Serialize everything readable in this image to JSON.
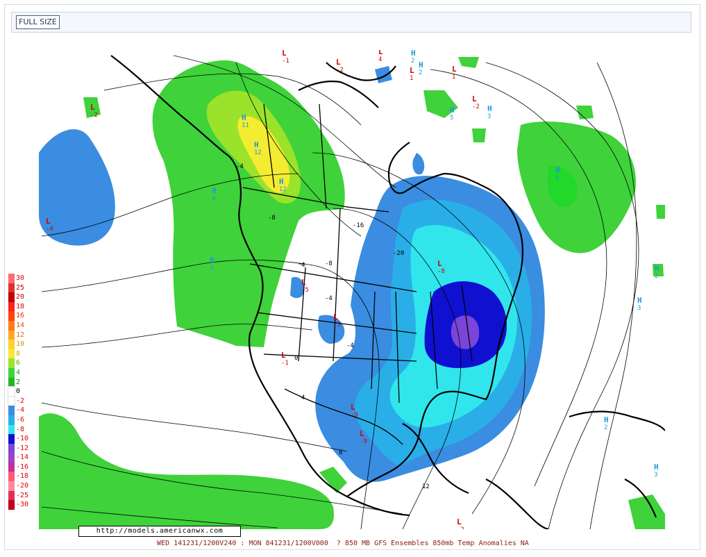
{
  "toolbar": {
    "full_size_label": "FULL SIZE"
  },
  "map": {
    "url": "http://models.americanwx.com",
    "footer": "WED 141231/1200V240 : MON 841231/1200V000  ? 850 MB GFS Ensembles 850mb Temp Anomalies NA",
    "legend": [
      {
        "label": "30",
        "color": "#ff6b6b",
        "text_color": "#e00000"
      },
      {
        "label": "25",
        "color": "#e03030",
        "text_color": "#c00000"
      },
      {
        "label": "20",
        "color": "#c00000",
        "text_color": "#c00000"
      },
      {
        "label": "18",
        "color": "#ff2020",
        "text_color": "#e00000"
      },
      {
        "label": "16",
        "color": "#ff4500",
        "text_color": "#e03000"
      },
      {
        "label": "14",
        "color": "#ff7a1a",
        "text_color": "#e05000"
      },
      {
        "label": "12",
        "color": "#ffa82a",
        "text_color": "#e07000"
      },
      {
        "label": "10",
        "color": "#ffd030",
        "text_color": "#d09000"
      },
      {
        "label": "8",
        "color": "#f4ec30",
        "text_color": "#c0b000"
      },
      {
        "label": "6",
        "color": "#9be22a",
        "text_color": "#60a000"
      },
      {
        "label": "4",
        "color": "#3fd23a",
        "text_color": "#20a020"
      },
      {
        "label": "2",
        "color": "#22b822",
        "text_color": "#108010"
      },
      {
        "label": "0",
        "color": "#ffffff",
        "text_color": "#000000"
      },
      {
        "label": "-2",
        "color": "#ffffff",
        "text_color": "#e00000"
      },
      {
        "label": "-4",
        "color": "#3a8de0",
        "text_color": "#e00000"
      },
      {
        "label": "-6",
        "color": "#2aaee8",
        "text_color": "#e00000"
      },
      {
        "label": "-8",
        "color": "#30e6ec",
        "text_color": "#e00000"
      },
      {
        "label": "-10",
        "color": "#1010d0",
        "text_color": "#e00000"
      },
      {
        "label": "-12",
        "color": "#7a46d8",
        "text_color": "#e00000"
      },
      {
        "label": "-14",
        "color": "#a040c8",
        "text_color": "#e00000"
      },
      {
        "label": "-16",
        "color": "#c0309a",
        "text_color": "#e00000"
      },
      {
        "label": "-18",
        "color": "#ff5a78",
        "text_color": "#e00000"
      },
      {
        "label": "-20",
        "color": "#ff8aa0",
        "text_color": "#e00000"
      },
      {
        "label": "-25",
        "color": "#e03050",
        "text_color": "#e00000"
      },
      {
        "label": "-30",
        "color": "#c00020",
        "text_color": "#e00000"
      }
    ],
    "contour_labels": [
      {
        "text": "-16"
      },
      {
        "text": "-20"
      },
      {
        "text": "-8"
      },
      {
        "text": "-4"
      },
      {
        "text": "4"
      },
      {
        "text": "-8"
      },
      {
        "text": "-4"
      },
      {
        "text": "4"
      },
      {
        "text": "8"
      },
      {
        "text": "12"
      },
      {
        "text": "0"
      },
      {
        "text": "-4"
      }
    ],
    "lows": [
      {
        "text": "L",
        "val": "-1"
      },
      {
        "text": "L",
        "val": "-2"
      },
      {
        "text": "L",
        "val": "4"
      },
      {
        "text": "L",
        "val": "1"
      },
      {
        "text": "L",
        "val": "1"
      },
      {
        "text": "L",
        "val": "-2"
      },
      {
        "text": "L",
        "val": "-2"
      },
      {
        "text": "L",
        "val": "-4"
      },
      {
        "text": "L",
        "val": "-8"
      },
      {
        "text": "L",
        "val": "-5"
      },
      {
        "text": "L",
        "val": "-5"
      },
      {
        "text": "L",
        "val": "-9"
      },
      {
        "text": "L",
        "val": "-9"
      },
      {
        "text": "L",
        "val": "-1"
      },
      {
        "text": "L",
        "val": "-2"
      }
    ],
    "highs": [
      {
        "text": "H",
        "val": "2"
      },
      {
        "text": "H",
        "val": "2"
      },
      {
        "text": "H",
        "val": "5"
      },
      {
        "text": "H",
        "val": "3"
      },
      {
        "text": "H",
        "val": "6"
      },
      {
        "text": "H",
        "val": "4"
      },
      {
        "text": "H",
        "val": "2"
      },
      {
        "text": "H",
        "val": "2"
      },
      {
        "text": "H",
        "val": "3"
      },
      {
        "text": "H",
        "val": "2"
      },
      {
        "text": "H",
        "val": "3"
      },
      {
        "text": "H",
        "val": "12"
      },
      {
        "text": "H",
        "val": "11"
      },
      {
        "text": "H",
        "val": "12"
      }
    ]
  }
}
